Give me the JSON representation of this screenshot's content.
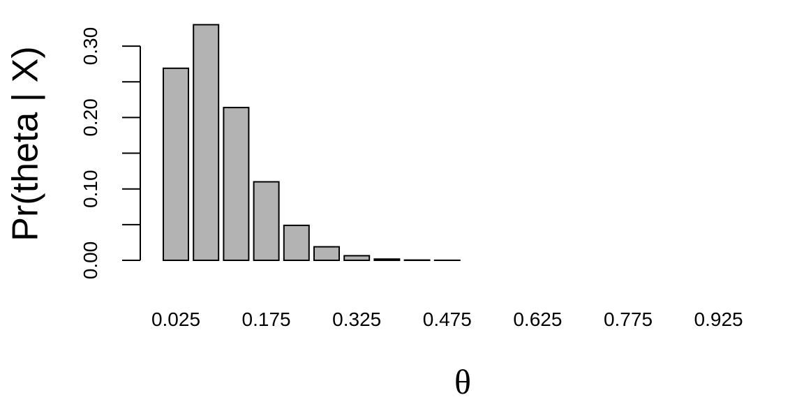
{
  "chart_data": {
    "type": "bar",
    "categories": [
      "0.025",
      "0.075",
      "0.125",
      "0.175",
      "0.225",
      "0.275",
      "0.325",
      "0.375",
      "0.425",
      "0.475",
      "0.525",
      "0.575",
      "0.625",
      "0.675",
      "0.725",
      "0.775",
      "0.825",
      "0.875",
      "0.925",
      "0.975"
    ],
    "shown_category_labels": [
      "0.025",
      "0.175",
      "0.325",
      "0.475",
      "0.625",
      "0.775",
      "0.925"
    ],
    "values": [
      0.269,
      0.33,
      0.214,
      0.11,
      0.049,
      0.019,
      0.0065,
      0.0018,
      0.0004,
      0.0001,
      0,
      0,
      0,
      0,
      0,
      0,
      0,
      0,
      0,
      0
    ],
    "title": "",
    "xlabel": "θ",
    "ylabel": "Pr(theta | X)",
    "ylim": [
      0,
      0.33
    ],
    "y_tick_values": [
      0.0,
      0.05,
      0.1,
      0.15,
      0.2,
      0.25,
      0.3
    ],
    "y_tick_labels": [
      "0.00",
      "0.10",
      "0.20",
      "0.30"
    ],
    "bar_color": "#b3b3b3",
    "grid": false
  }
}
